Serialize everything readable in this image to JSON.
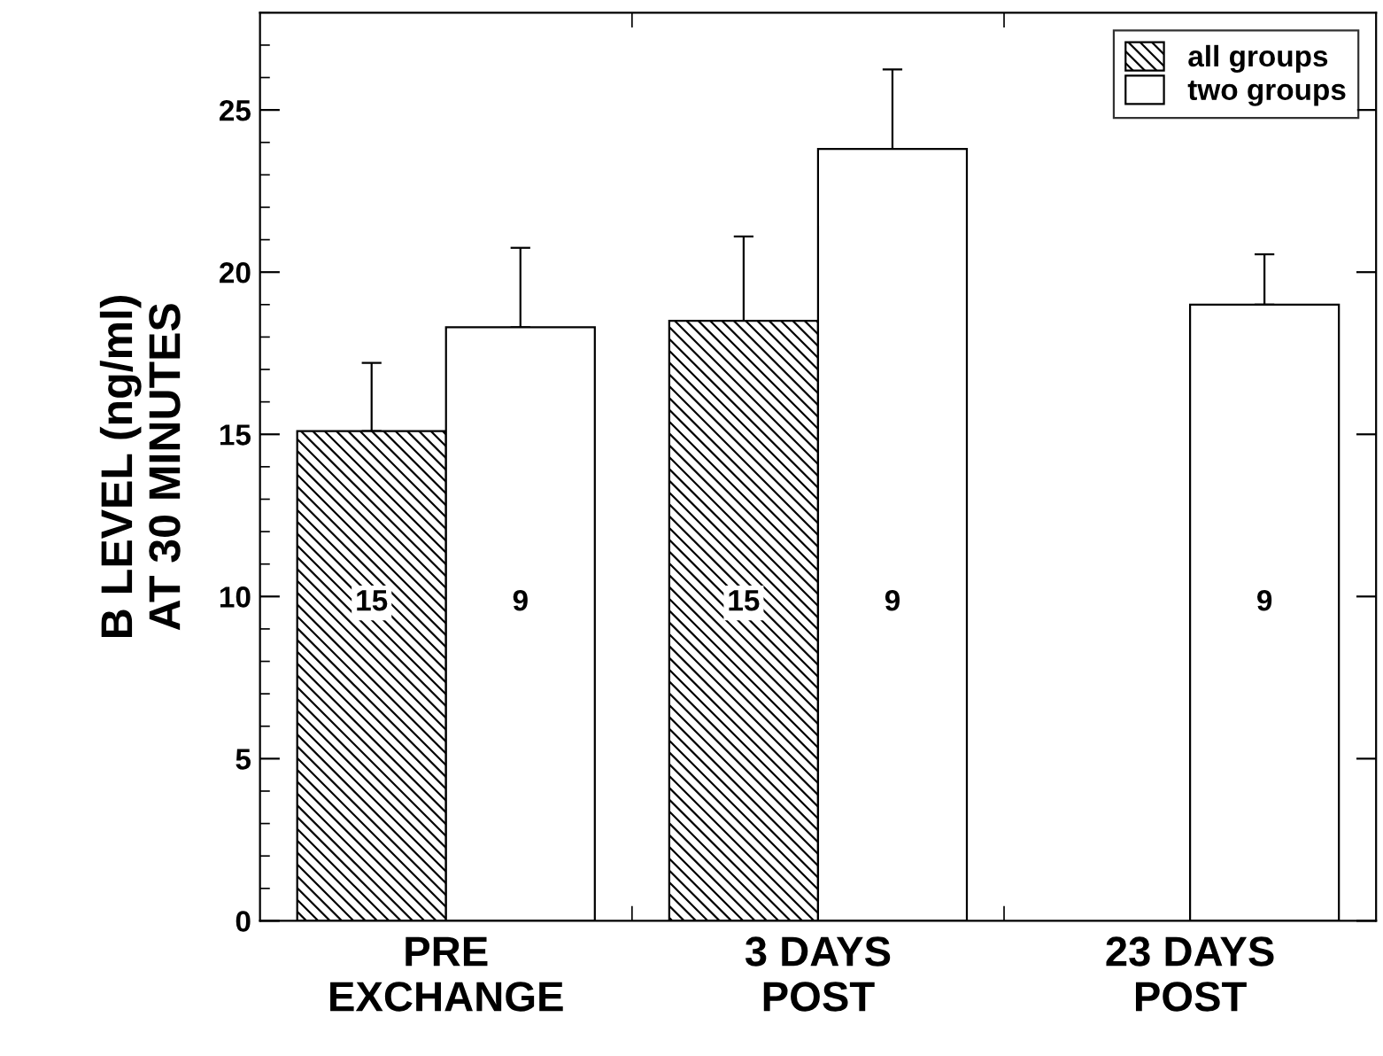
{
  "chart_data": {
    "type": "bar",
    "ylabel": "B LEVEL (ng/ml)\nAT 30 MINUTES",
    "categories": [
      "PRE\nEXCHANGE",
      "3 DAYS\nPOST",
      "23 DAYS\nPOST"
    ],
    "series": [
      {
        "name": "all groups",
        "color": "#000000",
        "values": [
          15.1,
          18.5,
          null
        ],
        "errors": [
          [
            15.1,
            17.2
          ],
          [
            18.5,
            21.1
          ],
          null
        ]
      },
      {
        "name": "two groups",
        "color": "#ffffff",
        "values": [
          18.3,
          23.8,
          19.0
        ],
        "errors": [
          [
            18.3,
            20.75
          ],
          [
            23.8,
            26.25
          ],
          [
            19.0,
            20.55
          ]
        ]
      }
    ],
    "annotations": [
      "15",
      "9",
      "15",
      "9",
      "9"
    ],
    "ylim": [
      0,
      28
    ],
    "yticks": [
      0,
      5,
      10,
      15,
      20,
      25
    ],
    "grid": false,
    "legend": "top right"
  }
}
